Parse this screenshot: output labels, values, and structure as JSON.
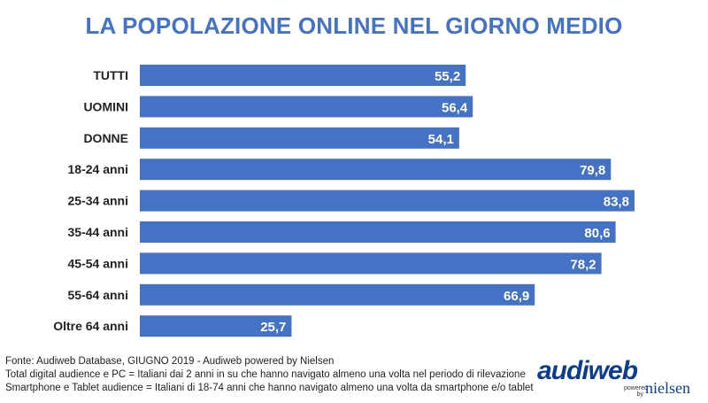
{
  "chart_data": {
    "type": "bar",
    "orientation": "horizontal",
    "title": "LA POPOLAZIONE ONLINE NEL GIORNO MEDIO",
    "categories": [
      "TUTTI",
      "UOMINI",
      "DONNE",
      "18-24 anni",
      "25-34 anni",
      "35-44 anni",
      "45-54 anni",
      "55-64 anni",
      "Oltre 64 anni"
    ],
    "values": [
      55.2,
      56.4,
      54.1,
      79.8,
      83.8,
      80.6,
      78.2,
      66.9,
      25.7
    ],
    "value_labels": [
      "55,2",
      "56,4",
      "54,1",
      "79,8",
      "83,8",
      "80,6",
      "78,2",
      "66,9",
      "25,7"
    ],
    "xlim": [
      0,
      100
    ],
    "grid": false,
    "bar_color": "#4472C4"
  },
  "footnotes": [
    "Fonte: Audiweb Database, GIUGNO 2019 - Audiweb powered by Nielsen",
    "Total digital audience e PC = Italiani dai 2 anni in su che hanno navigato almeno una volta nel periodo di rilevazione",
    "Smartphone e Tablet audience = Italiani di 18-74 anni che hanno navigato almeno una volta da smartphone e/o tablet"
  ],
  "logo": {
    "brand": "audiweb",
    "powered": "powered by",
    "partner": "nielsen"
  }
}
